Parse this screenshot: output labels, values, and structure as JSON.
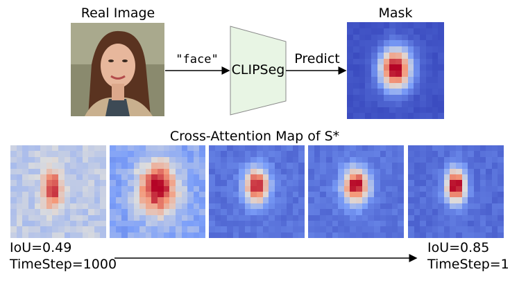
{
  "top": {
    "real_image_title": "Real Image",
    "prompt_label": "\"face\"",
    "model_label": "CLIPSeg",
    "predict_label": "Predict",
    "mask_title": "Mask"
  },
  "bottom": {
    "title": "Cross-Attention Map of S*",
    "left": {
      "iou": "IoU=0.49",
      "timestep": "TimeStep=1000"
    },
    "right": {
      "iou": "IoU=0.85",
      "timestep": "TimeStep=1"
    }
  },
  "colors": {
    "model_box": "#e8f5e4",
    "colormap": "coolwarm"
  }
}
